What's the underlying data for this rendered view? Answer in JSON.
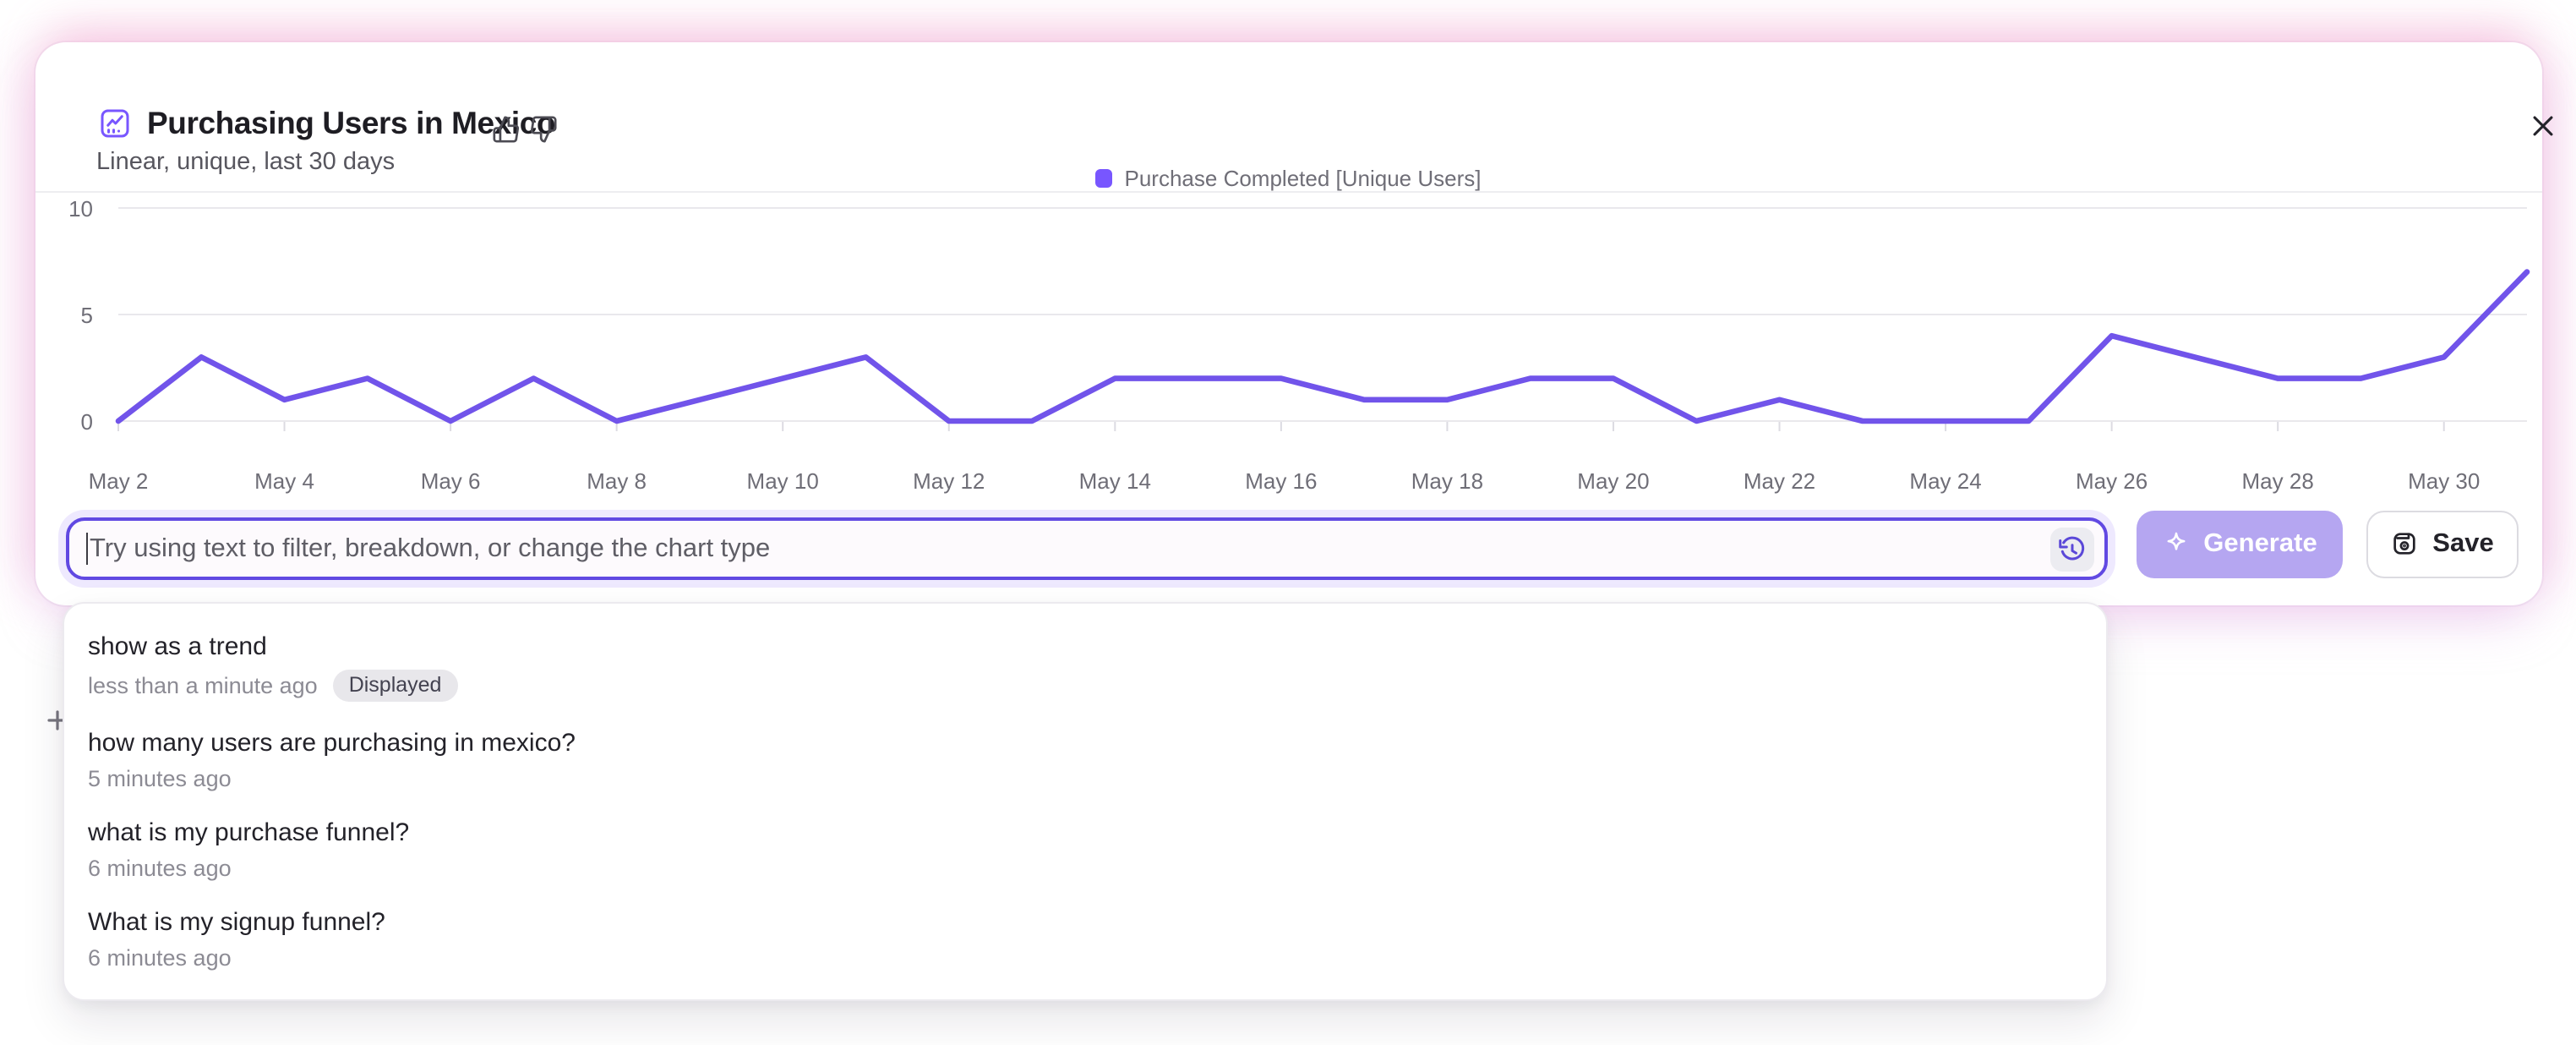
{
  "header": {
    "title": "Purchasing Users in Mexico",
    "subtitle": "Linear, unique, last 30 days",
    "close_label": "×"
  },
  "legend": {
    "label": "Purchase Completed [Unique Users]",
    "swatch_color": "#7856ff"
  },
  "chart_data": {
    "type": "line",
    "title": "Purchasing Users in Mexico",
    "x": [
      "May 2",
      "May 3",
      "May 4",
      "May 5",
      "May 6",
      "May 7",
      "May 8",
      "May 9",
      "May 10",
      "May 11",
      "May 12",
      "May 13",
      "May 14",
      "May 15",
      "May 16",
      "May 17",
      "May 18",
      "May 19",
      "May 20",
      "May 21",
      "May 22",
      "May 23",
      "May 24",
      "May 25",
      "May 26",
      "May 27",
      "May 28",
      "May 29",
      "May 30",
      "May 31"
    ],
    "series": [
      {
        "name": "Purchase Completed [Unique Users]",
        "color": "#7154ea",
        "values": [
          0,
          3,
          1,
          2,
          0,
          2,
          0,
          1,
          2,
          3,
          0,
          0,
          2,
          2,
          2,
          1,
          1,
          2,
          2,
          0,
          1,
          0,
          0,
          0,
          4,
          3,
          2,
          2,
          3,
          7
        ]
      }
    ],
    "ylim": [
      0,
      10
    ],
    "yticks": [
      0,
      5,
      10
    ],
    "x_tick_every": 2,
    "grid": true,
    "legend_position": "top-center"
  },
  "composer": {
    "placeholder": "Try using text to filter, breakdown, or change the chart type",
    "history_icon": "history-icon",
    "generate": {
      "label": "Generate",
      "icon": "sparkle-icon",
      "enabled": false
    },
    "save": {
      "label": "Save",
      "icon": "save-icon"
    }
  },
  "history_panel": {
    "items": [
      {
        "query": "show as a trend",
        "time": "less than a minute ago",
        "badge": "Displayed"
      },
      {
        "query": "how many users are purchasing in mexico?",
        "time": "5 minutes ago",
        "badge": null
      },
      {
        "query": "what is my purchase funnel?",
        "time": "6 minutes ago",
        "badge": null
      },
      {
        "query": "What is my signup funnel?",
        "time": "6 minutes ago",
        "badge": null
      }
    ]
  },
  "colors": {
    "accent": "#7856ff",
    "line": "#7154ea",
    "input_border": "#6149e2",
    "generate_bg": "#b5a6f1",
    "badge_bg": "#e8e7eb",
    "halo_pink": "#f6c4de"
  }
}
